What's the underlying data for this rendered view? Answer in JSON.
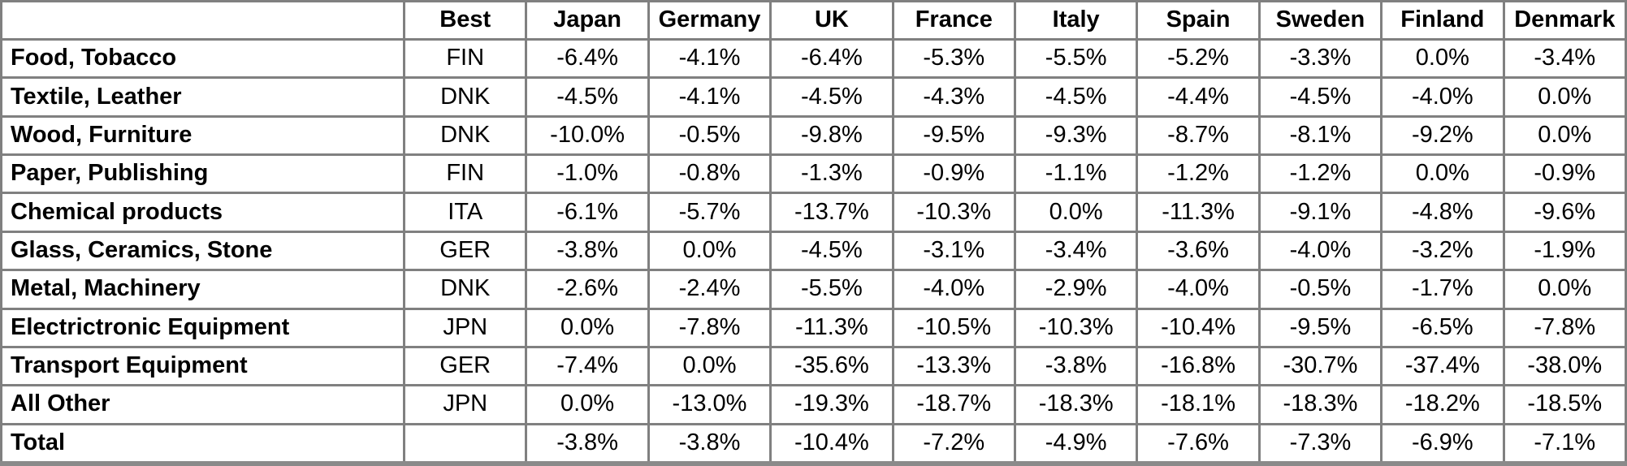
{
  "colors": {
    "grid_border": "#808080",
    "outer_bottom_border": "#8a8a8a",
    "text": "#000000",
    "background": "#ffffff"
  },
  "chart_data": {
    "type": "table",
    "title": "",
    "value_format": "percent",
    "columns": [
      "",
      "Best",
      "Japan",
      "Germany",
      "UK",
      "France",
      "Italy",
      "Spain",
      "Sweden",
      "Finland",
      "Denmark"
    ],
    "rows": [
      [
        "Food, Tobacco",
        "FIN",
        "-6.4%",
        "-4.1%",
        "-6.4%",
        "-5.3%",
        "-5.5%",
        "-5.2%",
        "-3.3%",
        "0.0%",
        "-3.4%"
      ],
      [
        "Textile, Leather",
        "DNK",
        "-4.5%",
        "-4.1%",
        "-4.5%",
        "-4.3%",
        "-4.5%",
        "-4.4%",
        "-4.5%",
        "-4.0%",
        "0.0%"
      ],
      [
        "Wood, Furniture",
        "DNK",
        "-10.0%",
        "-0.5%",
        "-9.8%",
        "-9.5%",
        "-9.3%",
        "-8.7%",
        "-8.1%",
        "-9.2%",
        "0.0%"
      ],
      [
        "Paper, Publishing",
        "FIN",
        "-1.0%",
        "-0.8%",
        "-1.3%",
        "-0.9%",
        "-1.1%",
        "-1.2%",
        "-1.2%",
        "0.0%",
        "-0.9%"
      ],
      [
        "Chemical products",
        "ITA",
        "-6.1%",
        "-5.7%",
        "-13.7%",
        "-10.3%",
        "0.0%",
        "-11.3%",
        "-9.1%",
        "-4.8%",
        "-9.6%"
      ],
      [
        "Glass, Ceramics, Stone",
        "GER",
        "-3.8%",
        "0.0%",
        "-4.5%",
        "-3.1%",
        "-3.4%",
        "-3.6%",
        "-4.0%",
        "-3.2%",
        "-1.9%"
      ],
      [
        "Metal, Machinery",
        "DNK",
        "-2.6%",
        "-2.4%",
        "-5.5%",
        "-4.0%",
        "-2.9%",
        "-4.0%",
        "-0.5%",
        "-1.7%",
        "0.0%"
      ],
      [
        "Electrictronic Equipment",
        "JPN",
        "0.0%",
        "-7.8%",
        "-11.3%",
        "-10.5%",
        "-10.3%",
        "-10.4%",
        "-9.5%",
        "-6.5%",
        "-7.8%"
      ],
      [
        "Transport Equipment",
        "GER",
        "-7.4%",
        "0.0%",
        "-35.6%",
        "-13.3%",
        "-3.8%",
        "-16.8%",
        "-30.7%",
        "-37.4%",
        "-38.0%"
      ],
      [
        "All Other",
        "JPN",
        "0.0%",
        "-13.0%",
        "-19.3%",
        "-18.7%",
        "-18.3%",
        "-18.1%",
        "-18.3%",
        "-18.2%",
        "-18.5%"
      ],
      [
        "Total",
        "",
        "-3.8%",
        "-3.8%",
        "-10.4%",
        "-7.2%",
        "-4.9%",
        "-7.6%",
        "-7.3%",
        "-6.9%",
        "-7.1%"
      ]
    ]
  }
}
